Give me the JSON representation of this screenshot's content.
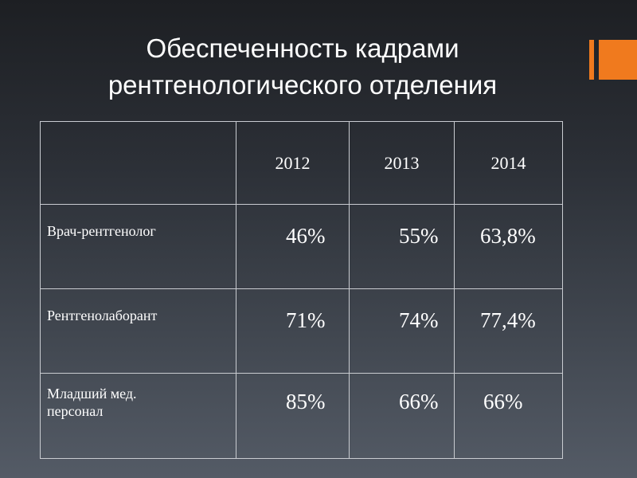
{
  "title": {
    "line1": "Обеспеченность кадрами",
    "line2": "рентгенологического отделения"
  },
  "accent_color": "#f07a1e",
  "table": {
    "header_label": "",
    "years": [
      "2012",
      "2013",
      "2014"
    ],
    "rows": [
      {
        "label": "Врач-рентгенолог",
        "values": [
          "46%",
          "55%",
          "63,8%"
        ]
      },
      {
        "label": "Рентгенолаборант",
        "values": [
          "71%",
          "74%",
          "77,4%"
        ]
      },
      {
        "label_line1": "Младший мед.",
        "label_line2": "персонал",
        "values": [
          "85%",
          "66%",
          "66%"
        ]
      }
    ]
  }
}
